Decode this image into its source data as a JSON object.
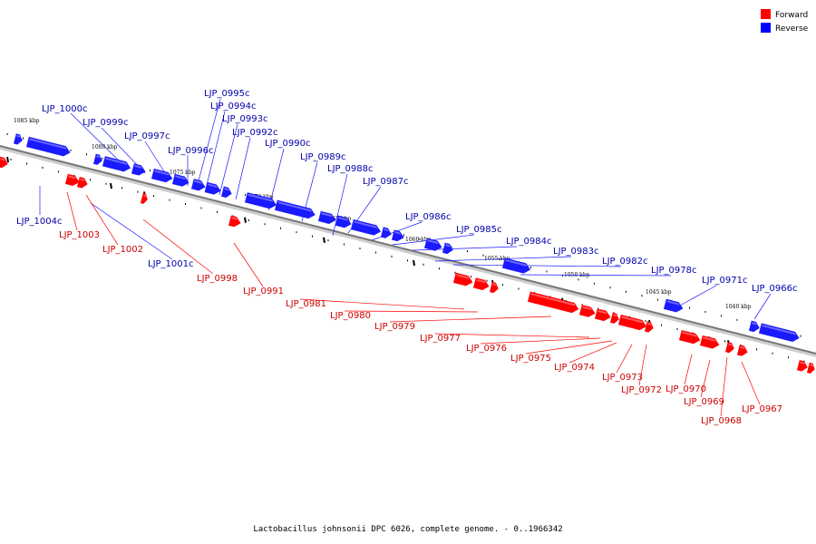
{
  "caption": "Lactobacillus johnsonii DPC 6026, complete genome. - 0..1966342",
  "legend": [
    {
      "label": "Forward",
      "color": "#ff0000"
    },
    {
      "label": "Reverse",
      "color": "#0000ff"
    }
  ],
  "colors": {
    "forward": "#ff0000",
    "reverse": "#1a1aff",
    "forward_label": "#cc0000",
    "reverse_label": "#0000aa",
    "axis": "#888888"
  },
  "scale_ticks": [
    "1085 kbp",
    "1080 kbp",
    "1075 kbp",
    "1070 kbp",
    "1065 kbp",
    "1060 kbp",
    "1055 kbp",
    "1050 kbp",
    "1045 kbp",
    "1040 kbp"
  ],
  "reverse_labels": [
    "LJP_1000c",
    "LJP_0999c",
    "LJP_0997c",
    "LJP_0996c",
    "LJP_0995c",
    "LJP_0994c",
    "LJP_0993c",
    "LJP_0992c",
    "LJP_0990c",
    "LJP_0989c",
    "LJP_0988c",
    "LJP_0987c",
    "LJP_0986c",
    "LJP_0985c",
    "LJP_0984c",
    "LJP_0983c",
    "LJP_0982c",
    "LJP_0978c",
    "LJP_0971c",
    "LJP_0966c",
    "LJP_1004c",
    "LJP_1001c"
  ],
  "forward_labels": [
    "LJP_1003",
    "LJP_1002",
    "LJP_0998",
    "LJP_0991",
    "LJP_0981",
    "LJP_0980",
    "LJP_0979",
    "LJP_0977",
    "LJP_0976",
    "LJP_0975",
    "LJP_0974",
    "LJP_0973",
    "LJP_0972",
    "LJP_0970",
    "LJP_0969",
    "LJP_0968",
    "LJP_0967"
  ]
}
